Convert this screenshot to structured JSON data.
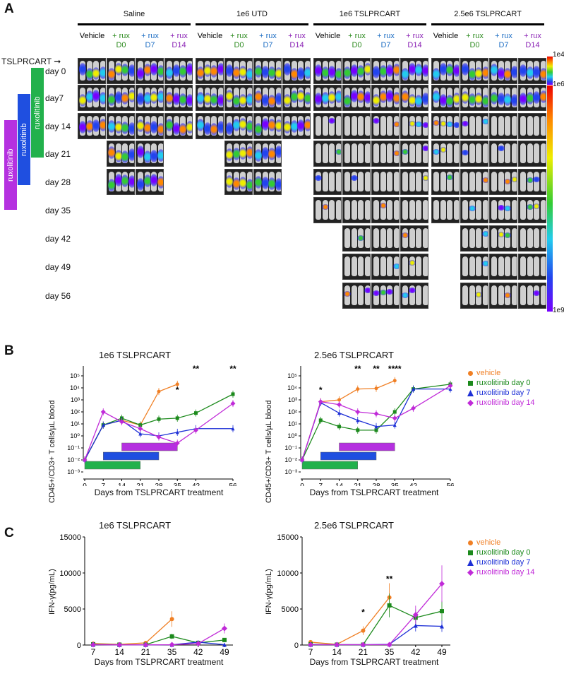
{
  "panel_a": {
    "letter": "A",
    "arrow_label": "TSLPRCART",
    "groups": [
      {
        "title": "Saline",
        "cols": [
          {
            "top": "Vehicle",
            "bottom": "",
            "color": "#000000"
          },
          {
            "top": "+ rux",
            "bottom": "D0",
            "color": "#2e8b20"
          },
          {
            "top": "+ rux",
            "bottom": "D7",
            "color": "#1f6fc4"
          },
          {
            "top": "+ rux",
            "bottom": "D14",
            "color": "#8b23b5"
          }
        ]
      },
      {
        "title": "1e6 UTD",
        "cols": [
          {
            "top": "Vehicle",
            "bottom": "",
            "color": "#000000"
          },
          {
            "top": "+ rux",
            "bottom": "D0",
            "color": "#2e8b20"
          },
          {
            "top": "+ rux",
            "bottom": "D7",
            "color": "#1f6fc4"
          },
          {
            "top": "+ rux",
            "bottom": "D14",
            "color": "#8b23b5"
          }
        ]
      },
      {
        "title": "1e6 TSLPRCART",
        "cols": [
          {
            "top": "Vehicle",
            "bottom": "",
            "color": "#000000"
          },
          {
            "top": "+ rux",
            "bottom": "D0",
            "color": "#2e8b20"
          },
          {
            "top": "+ rux",
            "bottom": "D7",
            "color": "#1f6fc4"
          },
          {
            "top": "+ rux",
            "bottom": "D14",
            "color": "#8b23b5"
          }
        ]
      },
      {
        "title": "2.5e6 TSLPRCART",
        "cols": [
          {
            "top": "Vehicle",
            "bottom": "",
            "color": "#000000"
          },
          {
            "top": "+ rux",
            "bottom": "D0",
            "color": "#2e8b20"
          },
          {
            "top": "+ rux",
            "bottom": "D7",
            "color": "#1f6fc4"
          },
          {
            "top": "+ rux",
            "bottom": "D14",
            "color": "#8b23b5"
          }
        ]
      }
    ],
    "days": [
      "day 0",
      "day7",
      "day 14",
      "day 21",
      "day 28",
      "day 35",
      "day 42",
      "day 49",
      "day 56"
    ],
    "rux_bars": [
      {
        "label": "ruxolitinib",
        "color": "#22b14c"
      },
      {
        "label": "ruxolitinib",
        "color": "#1f4fe0"
      },
      {
        "label": "ruxolitinib",
        "color": "#b531e0"
      }
    ],
    "colorbar": {
      "top_label": "1e4",
      "mid_label": "1e6",
      "bottom_label": "1e9"
    }
  },
  "panel_b": {
    "letter": "B",
    "charts": [
      {
        "title": "1e6 TSLPRCART",
        "ylabel": "CD45+/CD3+ T cells/µL blood",
        "xlabel": "Days from TSLPRCART treatment"
      },
      {
        "title": "2.5e6 TSLPRCART",
        "ylabel": "CD45+/CD3+ T cells/µL blood",
        "xlabel": "Days from TSLPRCART treatment"
      }
    ]
  },
  "panel_c": {
    "letter": "C",
    "charts": [
      {
        "title": "1e6 TSLPRCART",
        "ylabel": "IFN-γ(pg/mL)",
        "xlabel": "Days from TSLPRCART treatment"
      },
      {
        "title": "2.5e6 TSLPRCART",
        "ylabel": "IFN-γ(pg/mL)",
        "xlabel": "Days from TSLPRCART treatment"
      }
    ]
  },
  "legend": [
    {
      "label": "vehicle",
      "color": "#f07f24",
      "marker": "circle"
    },
    {
      "label": "ruxolitinib day 0",
      "color": "#1c8a1c",
      "marker": "square"
    },
    {
      "label": "ruxolitinib day 7",
      "color": "#1d2fd6",
      "marker": "triangle"
    },
    {
      "label": "ruxolitinib day 14",
      "color": "#c02ad8",
      "marker": "diamond"
    }
  ],
  "chart_data": [
    {
      "type": "line",
      "title": "1e6 TSLPRCART",
      "xlabel": "Days from TSLPRCART treatment",
      "ylabel": "CD45+/CD3+ T cells/µL blood",
      "yscale": "log",
      "ylim": [
        0.001,
        100000
      ],
      "x_ticks": [
        0,
        7,
        14,
        21,
        28,
        35,
        42,
        56
      ],
      "y_ticks": [
        "10⁻³",
        "10⁻²",
        "10⁻¹",
        "10⁰",
        "10¹",
        "10²",
        "10³",
        "10⁴",
        "10⁵"
      ],
      "series": [
        {
          "name": "vehicle",
          "x": [
            0,
            7,
            14,
            21,
            28,
            35
          ],
          "y": [
            0.01,
            8,
            20,
            8,
            5000,
            20000
          ]
        },
        {
          "name": "ruxolitinib day 0",
          "x": [
            0,
            7,
            14,
            21,
            28,
            35,
            42,
            56
          ],
          "y": [
            0.01,
            8,
            30,
            8,
            25,
            30,
            80,
            3000
          ]
        },
        {
          "name": "ruxolitinib day 7",
          "x": [
            0,
            7,
            14,
            21,
            28,
            35,
            42,
            56
          ],
          "y": [
            0.01,
            8,
            20,
            1.5,
            1,
            2,
            4,
            4
          ]
        },
        {
          "name": "ruxolitinib day 14",
          "x": [
            0,
            7,
            14,
            21,
            28,
            35,
            42,
            56
          ],
          "y": [
            0.01,
            100,
            15,
            4,
            0.8,
            0.25,
            3,
            500
          ]
        }
      ],
      "annotations": [
        {
          "x": 35,
          "text": "*"
        },
        {
          "x": 42,
          "text": "**"
        },
        {
          "x": 56,
          "text": "**"
        }
      ],
      "treatment_bars": [
        {
          "start": 0,
          "end": 21,
          "color": "#22b14c"
        },
        {
          "start": 7,
          "end": 28,
          "color": "#1f4fe0"
        },
        {
          "start": 14,
          "end": 35,
          "color": "#b531e0"
        }
      ]
    },
    {
      "type": "line",
      "title": "2.5e6 TSLPRCART",
      "xlabel": "Days from TSLPRCART treatment",
      "ylabel": "CD45+/CD3+ T cells/µL blood",
      "yscale": "log",
      "ylim": [
        0.001,
        100000
      ],
      "x_ticks": [
        0,
        7,
        14,
        21,
        28,
        35,
        42,
        56
      ],
      "y_ticks": [
        "10⁻³",
        "10⁻²",
        "10⁻¹",
        "10⁰",
        "10¹",
        "10²",
        "10³",
        "10⁴",
        "10⁵"
      ],
      "series": [
        {
          "name": "vehicle",
          "x": [
            0,
            7,
            14,
            21,
            28,
            35
          ],
          "y": [
            0.01,
            700,
            1000,
            8000,
            9000,
            40000
          ]
        },
        {
          "name": "ruxolitinib day 0",
          "x": [
            0,
            7,
            14,
            21,
            28,
            35,
            42,
            56
          ],
          "y": [
            0.01,
            20,
            6,
            3,
            3,
            100,
            8000,
            20000
          ]
        },
        {
          "name": "ruxolitinib day 7",
          "x": [
            0,
            7,
            14,
            21,
            28,
            35,
            42,
            56
          ],
          "y": [
            0.01,
            600,
            80,
            20,
            6,
            8,
            8000,
            8000
          ]
        },
        {
          "name": "ruxolitinib day 14",
          "x": [
            0,
            7,
            14,
            21,
            28,
            35,
            42,
            56
          ],
          "y": [
            0.01,
            700,
            400,
            100,
            70,
            30,
            200,
            15000
          ]
        }
      ],
      "annotations": [
        {
          "x": 7,
          "text": "*"
        },
        {
          "x": 21,
          "text": "**"
        },
        {
          "x": 28,
          "text": "**"
        },
        {
          "x": 35,
          "text": "****"
        }
      ],
      "treatment_bars": [
        {
          "start": 0,
          "end": 21,
          "color": "#22b14c"
        },
        {
          "start": 7,
          "end": 28,
          "color": "#1f4fe0"
        },
        {
          "start": 14,
          "end": 35,
          "color": "#b531e0"
        }
      ]
    },
    {
      "type": "line",
      "title": "1e6 TSLPRCART",
      "xlabel": "Days from TSLPRCART treatment",
      "ylabel": "IFN-γ(pg/mL)",
      "ylim": [
        0,
        15000
      ],
      "y_ticks": [
        0,
        5000,
        10000,
        15000
      ],
      "x_ticks": [
        7,
        14,
        21,
        35,
        42,
        49
      ],
      "series": [
        {
          "name": "vehicle",
          "x": [
            7,
            14,
            21,
            35
          ],
          "y": [
            200,
            100,
            300,
            3600
          ]
        },
        {
          "name": "ruxolitinib day 0",
          "x": [
            7,
            14,
            21,
            35,
            42,
            49
          ],
          "y": [
            100,
            50,
            50,
            1200,
            300,
            700
          ]
        },
        {
          "name": "ruxolitinib day 7",
          "x": [
            7,
            14,
            21,
            35,
            42,
            49
          ],
          "y": [
            50,
            30,
            30,
            50,
            400,
            50
          ]
        },
        {
          "name": "ruxolitinib day 14",
          "x": [
            7,
            14,
            21,
            35,
            42,
            49
          ],
          "y": [
            50,
            30,
            30,
            50,
            200,
            2300
          ]
        }
      ],
      "annotations": []
    },
    {
      "type": "line",
      "title": "2.5e6 TSLPRCART",
      "xlabel": "Days from TSLPRCART treatment",
      "ylabel": "IFN-γ(pg/mL)",
      "ylim": [
        0,
        15000
      ],
      "y_ticks": [
        0,
        5000,
        10000,
        15000
      ],
      "x_ticks": [
        7,
        14,
        21,
        35,
        42,
        49
      ],
      "series": [
        {
          "name": "vehicle",
          "x": [
            7,
            14,
            21,
            35
          ],
          "y": [
            400,
            100,
            2000,
            6600
          ]
        },
        {
          "name": "ruxolitinib day 0",
          "x": [
            7,
            14,
            21,
            35,
            42,
            49
          ],
          "y": [
            100,
            50,
            50,
            5500,
            3800,
            4700
          ]
        },
        {
          "name": "ruxolitinib day 7",
          "x": [
            7,
            14,
            21,
            35,
            42,
            49
          ],
          "y": [
            50,
            50,
            50,
            100,
            2700,
            2600
          ]
        },
        {
          "name": "ruxolitinib day 14",
          "x": [
            7,
            14,
            21,
            35,
            42,
            49
          ],
          "y": [
            50,
            50,
            50,
            50,
            4200,
            8500
          ]
        }
      ],
      "annotations": [
        {
          "x": 21,
          "text": "*"
        },
        {
          "x": 35,
          "text": "**"
        }
      ]
    }
  ]
}
